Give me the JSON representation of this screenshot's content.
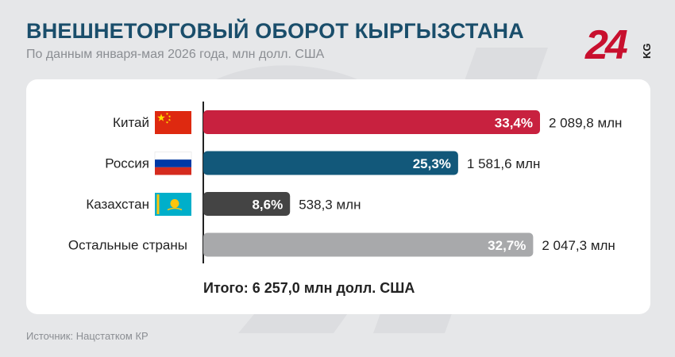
{
  "header": {
    "title": "ВНЕШНЕТОРГОВЫЙ ОБОРОТ КЫРГЫЗСТАНА",
    "subtitle": "По данным января-мая 2026 года, млн долл. США"
  },
  "logo": {
    "text": "24",
    "suffix": "KG",
    "color": "#c8102e"
  },
  "chart_data": {
    "type": "bar",
    "orientation": "horizontal",
    "categories": [
      "Китай",
      "Россия",
      "Казахстан",
      "Остальные страны"
    ],
    "series": [
      {
        "values": [
          2089.8,
          1581.6,
          538.3,
          2047.3
        ],
        "shares": [
          "33,4%",
          "25,3%",
          "8,6%",
          "32,7%"
        ],
        "value_labels": [
          "2 089,8 млн",
          "1 581,6 млн",
          "538,3 млн",
          "2 047,3 млн"
        ]
      }
    ],
    "flags": [
      "china-flag",
      "russia-flag",
      "kazakhstan-flag",
      ""
    ],
    "bar_colors": [
      "#c8213f",
      "#12587a",
      "#444444",
      "#a8a9ab"
    ],
    "total_label": "Итого: 6 257,0 млн долл. США",
    "xlim": [
      0,
      2089.8
    ],
    "grid": false
  },
  "footer": {
    "source": "Источник: Нацстатком КР"
  }
}
